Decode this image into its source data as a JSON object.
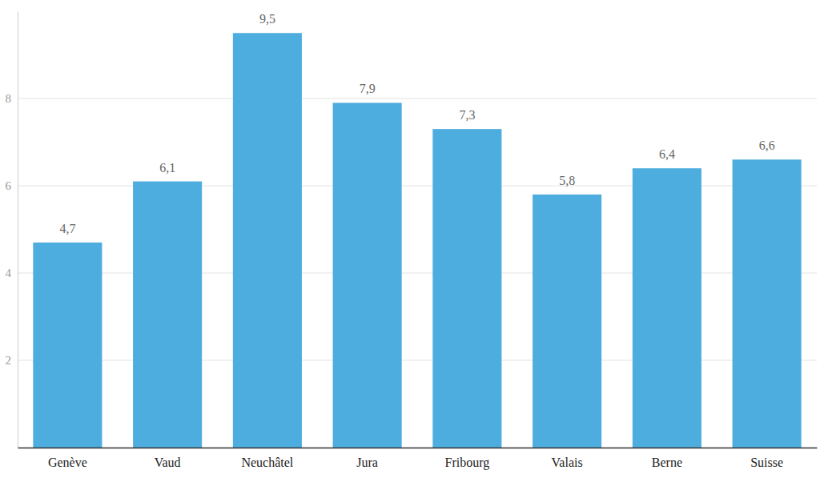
{
  "chart_data": {
    "type": "bar",
    "categories": [
      "Genève",
      "Vaud",
      "Neuchâtel",
      "Jura",
      "Fribourg",
      "Valais",
      "Berne",
      "Suisse"
    ],
    "values": [
      4.7,
      6.1,
      9.5,
      7.9,
      7.3,
      5.8,
      6.4,
      6.6
    ],
    "value_labels": [
      "4,7",
      "6,1",
      "9,5",
      "7,9",
      "7,3",
      "5,8",
      "6,4",
      "6,6"
    ],
    "color": "#4eaddf",
    "ylim": [
      0,
      10
    ],
    "yticks": [
      2,
      4,
      6,
      8
    ],
    "grid": true,
    "data_labels": true
  }
}
